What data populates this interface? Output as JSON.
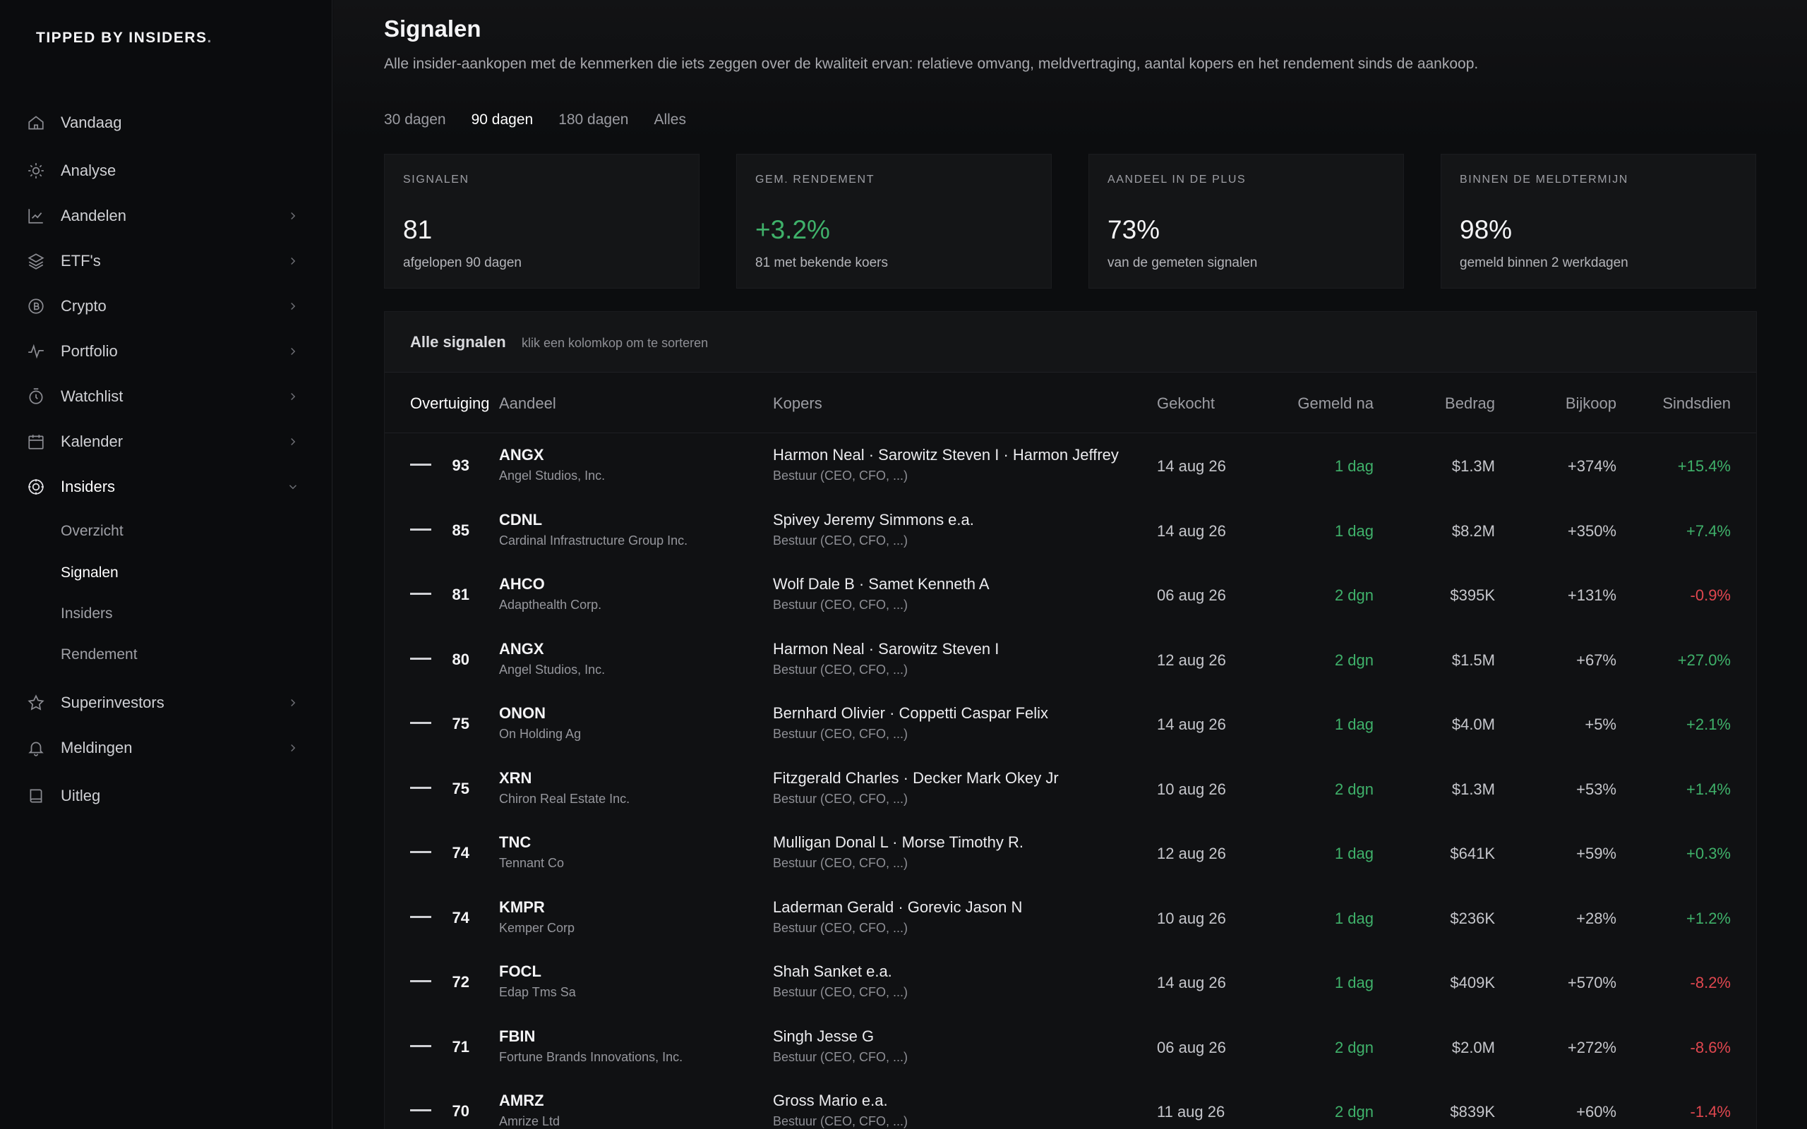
{
  "brand": {
    "name": "TIPPED BY INSIDERS",
    "dot": "."
  },
  "nav": [
    {
      "label": "Vandaag",
      "icon": "home-icon",
      "has_chevron": false
    },
    {
      "label": "Analyse",
      "icon": "sun-icon",
      "has_chevron": false
    },
    {
      "label": "Aandelen",
      "icon": "chart-line-icon",
      "has_chevron": true
    },
    {
      "label": "ETF's",
      "icon": "layers-icon",
      "has_chevron": true
    },
    {
      "label": "Crypto",
      "icon": "bitcoin-icon",
      "has_chevron": true
    },
    {
      "label": "Portfolio",
      "icon": "activity-icon",
      "has_chevron": true
    },
    {
      "label": "Watchlist",
      "icon": "timer-icon",
      "has_chevron": true
    },
    {
      "label": "Kalender",
      "icon": "calendar-icon",
      "has_chevron": true
    },
    {
      "label": "Insiders",
      "icon": "target-icon",
      "has_chevron": true
    },
    {
      "label": "Superinvestors",
      "icon": "star-icon",
      "has_chevron": true
    },
    {
      "label": "Meldingen",
      "icon": "bell-icon",
      "has_chevron": true
    },
    {
      "label": "Uitleg",
      "icon": "book-icon",
      "has_chevron": false
    }
  ],
  "subnav": [
    {
      "label": "Overzicht"
    },
    {
      "label": "Signalen"
    },
    {
      "label": "Insiders"
    },
    {
      "label": "Rendement"
    }
  ],
  "page": {
    "title": "Signalen",
    "description": "Alle insider-aankopen met de kenmerken die iets zeggen over de kwaliteit ervan: relatieve omvang, meldvertraging, aantal kopers en het rendement sinds de aankoop."
  },
  "tabs": [
    "30 dagen",
    "90 dagen",
    "180 dagen",
    "Alles"
  ],
  "stats": [
    {
      "label": "SIGNALEN",
      "value": "81",
      "sub": "afgelopen 90 dagen"
    },
    {
      "label": "GEM. RENDEMENT",
      "value": "+3.2%",
      "sub": "81 met bekende koers"
    },
    {
      "label": "AANDEEL IN DE PLUS",
      "value": "73%",
      "sub": "van de gemeten signalen"
    },
    {
      "label": "BINNEN DE MELDTERMIJN",
      "value": "98%",
      "sub": "gemeld binnen 2 werkdagen"
    }
  ],
  "table": {
    "title": "Alle signalen",
    "hint": "klik een kolomkop om te sorteren",
    "columns": {
      "overtuiging": "Overtuiging",
      "aandeel": "Aandeel",
      "kopers": "Kopers",
      "gekocht": "Gekocht",
      "gemeld": "Gemeld na",
      "bedrag": "Bedrag",
      "bijkoop": "Bijkoop",
      "sindsdien": "Sindsdien"
    },
    "rows": [
      {
        "score": "93",
        "ticker": "ANGX",
        "company": "Angel Studios, Inc.",
        "buyers": "Harmon Neal · Sarowitz Steven I · Harmon Jeffrey",
        "role": "Bestuur (CEO, CFO, ...)",
        "date": "14 aug 26",
        "reported": "1 dag",
        "amount": "$1.3M",
        "bijkoop": "+374%",
        "since": "+15.4%",
        "since_dir": "up"
      },
      {
        "score": "85",
        "ticker": "CDNL",
        "company": "Cardinal Infrastructure Group Inc.",
        "buyers": "Spivey Jeremy Simmons e.a.",
        "role": "Bestuur (CEO, CFO, ...)",
        "date": "14 aug 26",
        "reported": "1 dag",
        "amount": "$8.2M",
        "bijkoop": "+350%",
        "since": "+7.4%",
        "since_dir": "up"
      },
      {
        "score": "81",
        "ticker": "AHCO",
        "company": "Adapthealth Corp.",
        "buyers": "Wolf Dale B · Samet Kenneth A",
        "role": "Bestuur (CEO, CFO, ...)",
        "date": "06 aug 26",
        "reported": "2 dgn",
        "amount": "$395K",
        "bijkoop": "+131%",
        "since": "-0.9%",
        "since_dir": "down"
      },
      {
        "score": "80",
        "ticker": "ANGX",
        "company": "Angel Studios, Inc.",
        "buyers": "Harmon Neal · Sarowitz Steven I",
        "role": "Bestuur (CEO, CFO, ...)",
        "date": "12 aug 26",
        "reported": "2 dgn",
        "amount": "$1.5M",
        "bijkoop": "+67%",
        "since": "+27.0%",
        "since_dir": "up"
      },
      {
        "score": "75",
        "ticker": "ONON",
        "company": "On Holding Ag",
        "buyers": "Bernhard Olivier · Coppetti Caspar Felix",
        "role": "Bestuur (CEO, CFO, ...)",
        "date": "14 aug 26",
        "reported": "1 dag",
        "amount": "$4.0M",
        "bijkoop": "+5%",
        "since": "+2.1%",
        "since_dir": "up"
      },
      {
        "score": "75",
        "ticker": "XRN",
        "company": "Chiron Real Estate Inc.",
        "buyers": "Fitzgerald Charles · Decker Mark Okey Jr",
        "role": "Bestuur (CEO, CFO, ...)",
        "date": "10 aug 26",
        "reported": "2 dgn",
        "amount": "$1.3M",
        "bijkoop": "+53%",
        "since": "+1.4%",
        "since_dir": "up"
      },
      {
        "score": "74",
        "ticker": "TNC",
        "company": "Tennant Co",
        "buyers": "Mulligan Donal L · Morse Timothy R.",
        "role": "Bestuur (CEO, CFO, ...)",
        "date": "12 aug 26",
        "reported": "1 dag",
        "amount": "$641K",
        "bijkoop": "+59%",
        "since": "+0.3%",
        "since_dir": "up"
      },
      {
        "score": "74",
        "ticker": "KMPR",
        "company": "Kemper Corp",
        "buyers": "Laderman Gerald · Gorevic Jason N",
        "role": "Bestuur (CEO, CFO, ...)",
        "date": "10 aug 26",
        "reported": "1 dag",
        "amount": "$236K",
        "bijkoop": "+28%",
        "since": "+1.2%",
        "since_dir": "up"
      },
      {
        "score": "72",
        "ticker": "FOCL",
        "company": "Edap Tms Sa",
        "buyers": "Shah Sanket e.a.",
        "role": "Bestuur (CEO, CFO, ...)",
        "date": "14 aug 26",
        "reported": "1 dag",
        "amount": "$409K",
        "bijkoop": "+570%",
        "since": "-8.2%",
        "since_dir": "down"
      },
      {
        "score": "71",
        "ticker": "FBIN",
        "company": "Fortune Brands Innovations, Inc.",
        "buyers": "Singh Jesse G",
        "role": "Bestuur (CEO, CFO, ...)",
        "date": "06 aug 26",
        "reported": "2 dgn",
        "amount": "$2.0M",
        "bijkoop": "+272%",
        "since": "-8.6%",
        "since_dir": "down"
      },
      {
        "score": "70",
        "ticker": "AMRZ",
        "company": "Amrize Ltd",
        "buyers": "Gross Mario e.a.",
        "role": "Bestuur (CEO, CFO, ...)",
        "date": "11 aug 26",
        "reported": "2 dgn",
        "amount": "$839K",
        "bijkoop": "+60%",
        "since": "-1.4%",
        "since_dir": "down"
      }
    ]
  },
  "colors": {
    "up": "#3fb16a",
    "down": "#e0474f",
    "bg": "#0c0d0f",
    "card": "#141517"
  }
}
